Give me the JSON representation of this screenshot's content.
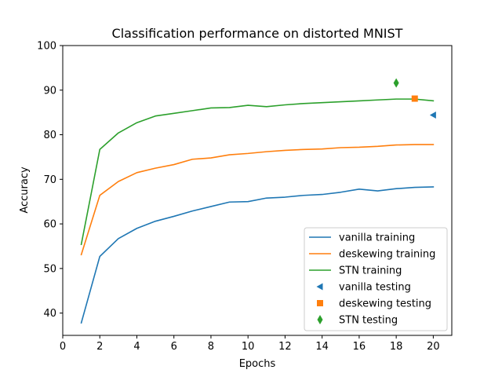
{
  "chart_data": {
    "type": "line",
    "title": "Classification performance on distorted MNIST",
    "xlabel": "Epochs",
    "ylabel": "Accuracy",
    "xlim": [
      0,
      21
    ],
    "ylim": [
      35,
      100
    ],
    "xticks": [
      0,
      2,
      4,
      6,
      8,
      10,
      12,
      14,
      16,
      18,
      20
    ],
    "yticks": [
      40,
      50,
      60,
      70,
      80,
      90,
      100
    ],
    "grid": false,
    "legend_position": "lower-right",
    "x": [
      1,
      2,
      3,
      4,
      5,
      6,
      7,
      8,
      9,
      10,
      11,
      12,
      13,
      14,
      15,
      16,
      17,
      18,
      19,
      20
    ],
    "series": [
      {
        "name": "vanilla training",
        "kind": "line",
        "color": "#1f77b4",
        "values": [
          37.8,
          52.7,
          56.7,
          59.0,
          60.6,
          61.7,
          62.9,
          63.9,
          64.9,
          65.0,
          65.8,
          66.0,
          66.4,
          66.6,
          67.1,
          67.8,
          67.4,
          67.9,
          68.2,
          68.3
        ]
      },
      {
        "name": "deskewing training",
        "kind": "line",
        "color": "#ff7f0e",
        "values": [
          53.1,
          66.4,
          69.5,
          71.5,
          72.5,
          73.3,
          74.5,
          74.8,
          75.5,
          75.8,
          76.2,
          76.5,
          76.7,
          76.8,
          77.1,
          77.2,
          77.4,
          77.7,
          77.8,
          77.8
        ]
      },
      {
        "name": "STN training",
        "kind": "line",
        "color": "#2ca02c",
        "values": [
          55.4,
          76.7,
          80.4,
          82.7,
          84.2,
          84.8,
          85.4,
          86.0,
          86.1,
          86.6,
          86.3,
          86.7,
          87.0,
          87.2,
          87.4,
          87.6,
          87.8,
          88.0,
          88.0,
          87.6
        ]
      },
      {
        "name": "vanilla testing",
        "kind": "marker",
        "marker": "triangle-left",
        "color": "#1f77b4",
        "x": 20,
        "y": 84.4
      },
      {
        "name": "deskewing testing",
        "kind": "marker",
        "marker": "square",
        "color": "#ff7f0e",
        "x": 19,
        "y": 88.1
      },
      {
        "name": "STN testing",
        "kind": "marker",
        "marker": "diamond",
        "color": "#2ca02c",
        "x": 18,
        "y": 91.6
      }
    ]
  }
}
